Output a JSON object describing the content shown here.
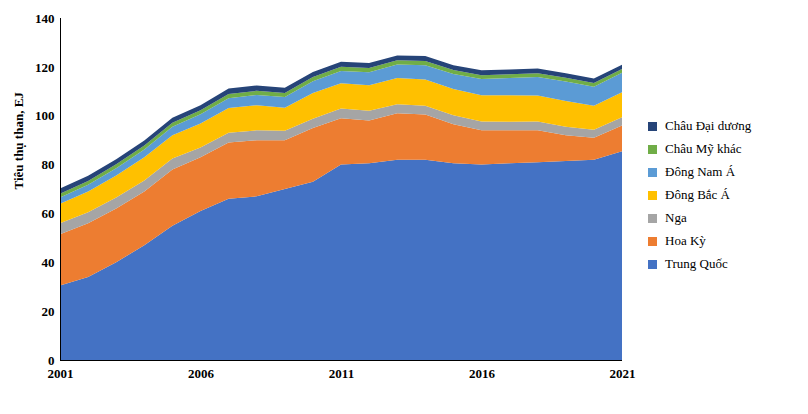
{
  "chart_data": {
    "type": "area",
    "stacked": true,
    "y_label": "Tiêu thụ than, EJ",
    "x": [
      2001,
      2002,
      2003,
      2004,
      2005,
      2006,
      2007,
      2008,
      2009,
      2010,
      2011,
      2012,
      2013,
      2014,
      2015,
      2016,
      2017,
      2018,
      2019,
      2020,
      2021
    ],
    "xlim": [
      2001,
      2021
    ],
    "xticks": [
      2001,
      2006,
      2011,
      2016,
      2021
    ],
    "ylim": [
      0,
      140
    ],
    "yticks": [
      0,
      20,
      40,
      60,
      80,
      100,
      120,
      140
    ],
    "grid": false,
    "legend": "right",
    "series": [
      {
        "name": "Trung Quốc",
        "color": "#4472c4",
        "values": [
          30.5,
          34,
          40,
          47,
          55,
          61,
          66,
          67,
          70,
          73,
          80,
          80.5,
          82,
          82,
          80.5,
          80,
          80.5,
          81,
          81.5,
          82,
          85.5
        ]
      },
      {
        "name": "Hoa Kỳ",
        "color": "#ed7d31",
        "values": [
          21,
          22,
          22,
          22,
          23,
          22,
          23,
          23,
          20,
          22,
          19,
          17.5,
          19,
          18.5,
          16,
          14,
          13.5,
          13,
          10.5,
          9,
          10.5
        ]
      },
      {
        "name": "Nga",
        "color": "#a5a5a5",
        "values": [
          4.5,
          4.5,
          4.5,
          4.5,
          4.5,
          4.0,
          4.0,
          4.0,
          3.8,
          3.8,
          4.0,
          4.0,
          3.7,
          3.6,
          3.7,
          3.6,
          3.5,
          3.6,
          3.5,
          3.3,
          3.4
        ]
      },
      {
        "name": "Đông Bắc Á",
        "color": "#ffc000",
        "values": [
          8,
          8.5,
          9,
          9.5,
          9.5,
          9.8,
          10.2,
          10.3,
          9.5,
          10.5,
          10.3,
          10.5,
          10.7,
          10.7,
          10.7,
          10.8,
          10.9,
          10.7,
          10.5,
          9.8,
          10.2
        ]
      },
      {
        "name": "Đông Nam Á",
        "color": "#5b9bd5",
        "values": [
          2.5,
          2.7,
          3.0,
          3.2,
          3.5,
          3.8,
          4.0,
          4.2,
          4.4,
          4.8,
          5.0,
          5.3,
          5.6,
          5.9,
          6.2,
          6.6,
          7.0,
          7.5,
          8.0,
          7.8,
          8.0
        ]
      },
      {
        "name": "Châu Mỹ khác",
        "color": "#70ad47",
        "values": [
          1.6,
          1.6,
          1.6,
          1.6,
          1.6,
          1.6,
          1.7,
          1.7,
          1.6,
          1.7,
          1.7,
          1.7,
          1.7,
          1.7,
          1.6,
          1.6,
          1.6,
          1.6,
          1.5,
          1.5,
          1.5
        ]
      },
      {
        "name": "Châu Đại dương",
        "color": "#264478",
        "values": [
          2.1,
          2.1,
          2.1,
          2.1,
          2.1,
          2.1,
          2.2,
          2.2,
          2.1,
          2.1,
          2.1,
          2.1,
          2.0,
          2.0,
          2.0,
          2.0,
          1.9,
          1.9,
          1.9,
          1.8,
          1.8
        ]
      }
    ]
  }
}
